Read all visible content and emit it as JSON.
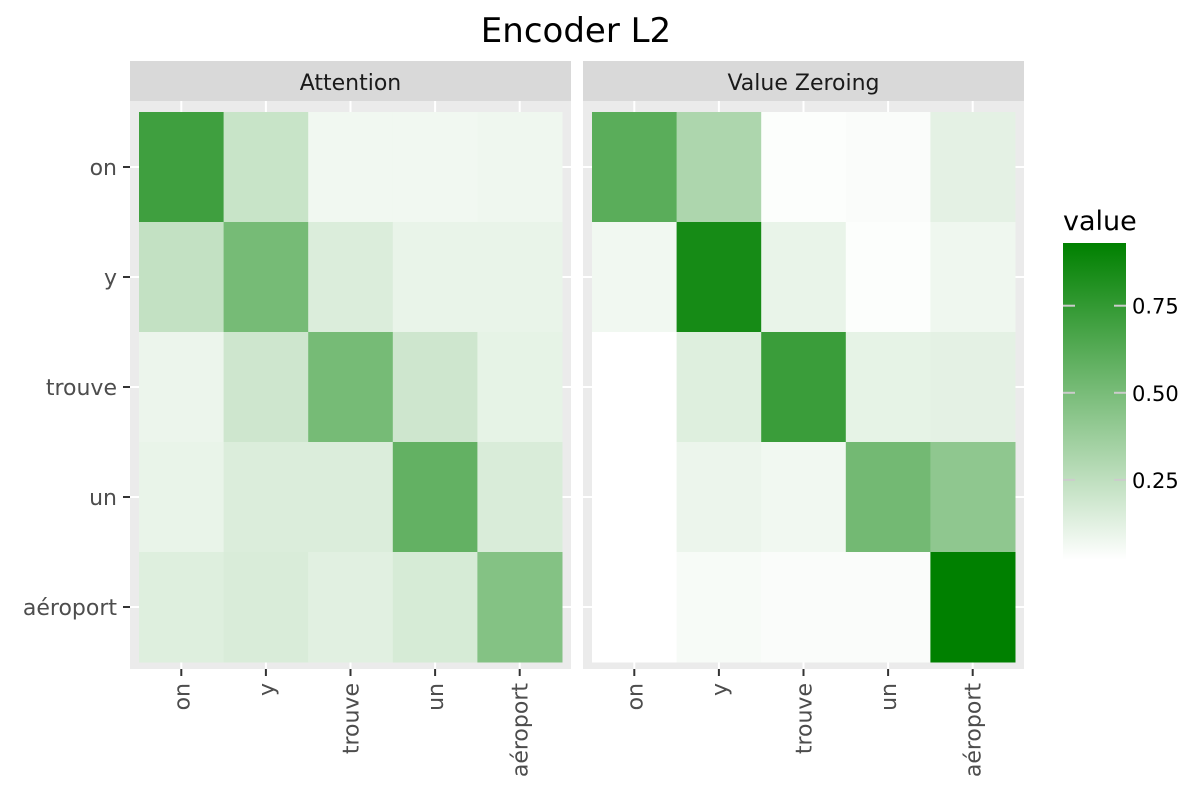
{
  "chart_data": {
    "type": "heatmap",
    "title": "Encoder L2",
    "xlabel": "",
    "ylabel": "",
    "x_categories": [
      "on",
      "y",
      "trouve",
      "un",
      "aéroport"
    ],
    "y_categories": [
      "on",
      "y",
      "trouve",
      "un",
      "aéroport"
    ],
    "panels": [
      {
        "name": "Attention",
        "values": [
          [
            0.7,
            0.2,
            0.05,
            0.05,
            0.06
          ],
          [
            0.22,
            0.5,
            0.13,
            0.08,
            0.08
          ],
          [
            0.07,
            0.18,
            0.5,
            0.18,
            0.09
          ],
          [
            0.08,
            0.13,
            0.13,
            0.57,
            0.14
          ],
          [
            0.12,
            0.14,
            0.11,
            0.15,
            0.45
          ]
        ]
      },
      {
        "name": "Value Zeroing",
        "values": [
          [
            0.6,
            0.3,
            0.01,
            0.02,
            0.1
          ],
          [
            0.05,
            0.85,
            0.08,
            0.01,
            0.06
          ],
          [
            0.0,
            0.12,
            0.72,
            0.09,
            0.1
          ],
          [
            0.0,
            0.07,
            0.05,
            0.51,
            0.41
          ],
          [
            0.0,
            0.03,
            0.02,
            0.02,
            0.93
          ]
        ]
      }
    ],
    "legend": {
      "title": "value",
      "ticks": [
        0.25,
        0.5,
        0.75
      ],
      "tick_labels": [
        "0.25",
        "0.50",
        "0.75"
      ],
      "range": [
        0.0,
        0.93
      ],
      "low_color": "#ffffff",
      "high_color": "#008000"
    },
    "grid": true,
    "legend_position": "right"
  }
}
